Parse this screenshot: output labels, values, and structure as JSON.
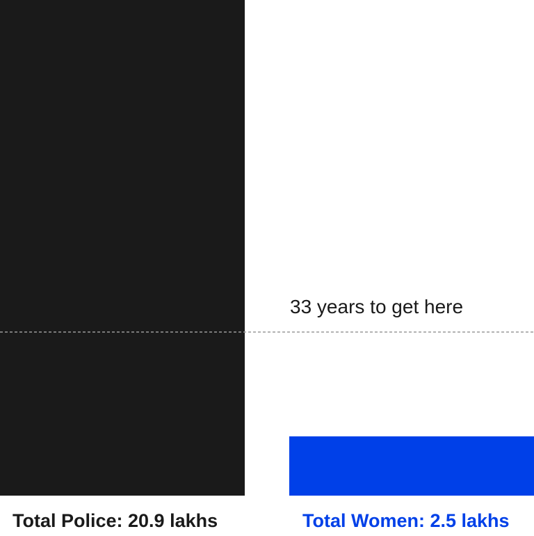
{
  "chart_data": {
    "type": "bar",
    "categories": [
      "Total Police",
      "Total Women"
    ],
    "values": [
      20.9,
      2.5
    ],
    "unit": "lakhs",
    "labels": [
      "Total Police: 20.9 lakhs",
      "Total Women: 2.5 lakhs"
    ],
    "colors": [
      "#1a1a1a",
      "#0040e8"
    ],
    "reference_line": {
      "style": "dashed",
      "color": "#9a9a9a",
      "annotation": "33 years to get here"
    }
  }
}
